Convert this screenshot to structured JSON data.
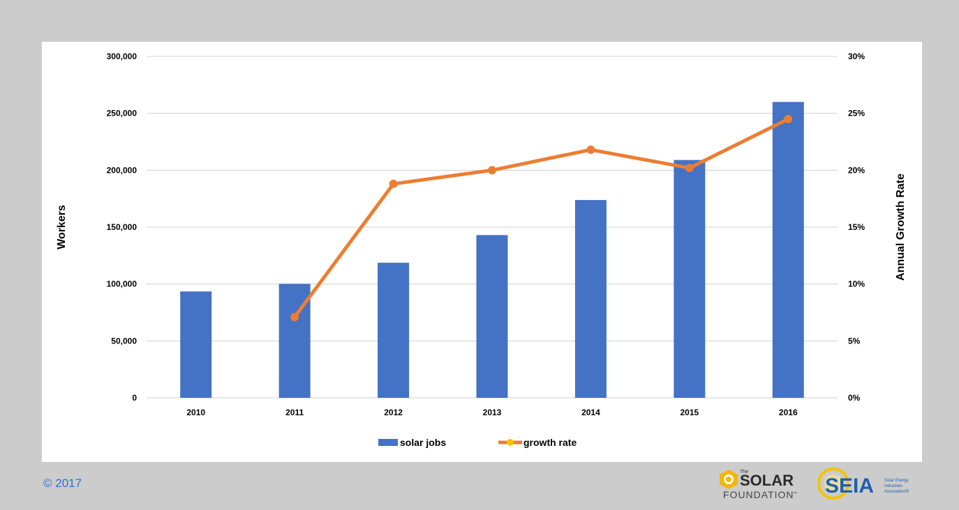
{
  "footer": {
    "copyright": "© 2017",
    "logos": [
      {
        "name": "the-solar-foundation-logo",
        "small": "The",
        "main": "SOLAR",
        "sub": "FOUNDATION",
        "tm": "™"
      },
      {
        "name": "seia-logo",
        "main": "SEIA",
        "tagline": [
          "Solar Energy",
          "Industries",
          "Association®"
        ]
      }
    ]
  },
  "colors": {
    "bars": "#4472c4",
    "line": "#ed7d31",
    "legend_marker": "#ffc000",
    "grid": "#d0d0d0",
    "background": "#cccccc",
    "panel": "#ffffff",
    "copyright": "#2f6fd1"
  },
  "chart_data": {
    "type": "bar",
    "categories": [
      "2010",
      "2011",
      "2012",
      "2013",
      "2014",
      "2015",
      "2016"
    ],
    "series": [
      {
        "name": "solar jobs",
        "type": "bar",
        "axis": "left",
        "values": [
          93500,
          100200,
          118700,
          143000,
          173800,
          209000,
          260000
        ]
      },
      {
        "name": "growth rate",
        "type": "line",
        "axis": "right",
        "values": [
          null,
          7.1,
          18.8,
          20.0,
          21.8,
          20.2,
          24.5
        ]
      }
    ],
    "title": "",
    "xlabel": "",
    "ylabel": "Workers",
    "y2label": "Annual Growth Rate",
    "ylim": [
      0,
      300000
    ],
    "y2lim": [
      0,
      30
    ],
    "yticks": [
      0,
      50000,
      100000,
      150000,
      200000,
      250000,
      300000
    ],
    "yticklabels": [
      "0",
      "50,000",
      "100,000",
      "150,000",
      "200,000",
      "250,000",
      "300,000"
    ],
    "y2ticks": [
      0,
      5,
      10,
      15,
      20,
      25,
      30
    ],
    "y2ticklabels": [
      "0%",
      "5%",
      "10%",
      "15%",
      "20%",
      "25%",
      "30%"
    ],
    "grid": true,
    "legend": "bottom-center"
  }
}
